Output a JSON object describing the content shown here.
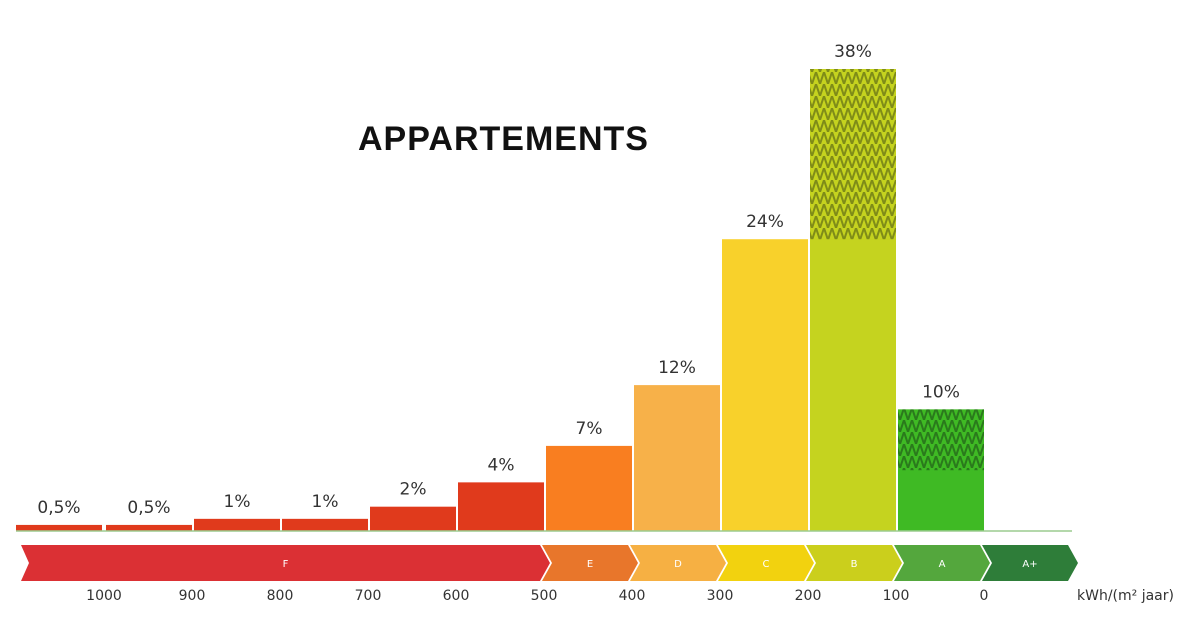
{
  "title": "APPARTEMENTS",
  "chart_data": {
    "type": "bar",
    "title": "APPARTEMENTS",
    "unit": "kWh/(m² jaar)",
    "categories": [
      "> 1000",
      "1000-900",
      "900-800",
      "800-700",
      "700-600",
      "600-500",
      "500-400",
      "400-300",
      "300-200",
      "200-100",
      "100-0"
    ],
    "values": [
      0.5,
      0.5,
      1,
      1,
      2,
      4,
      7,
      12,
      24,
      38,
      10
    ],
    "value_labels": [
      "0,5%",
      "0,5%",
      "1%",
      "1%",
      "2%",
      "4%",
      "7%",
      "12%",
      "24%",
      "38%",
      "10%"
    ],
    "bar_colors": [
      "#e03a1c",
      "#e03a1c",
      "#e03a1c",
      "#e03a1c",
      "#e03a1c",
      "#e03a1c",
      "#f97e20",
      "#f7b149",
      "#f8d12b",
      "#c5d31f",
      "#3fba24"
    ],
    "hatched_top_values": [
      0,
      0,
      0,
      0,
      0,
      0,
      0,
      0,
      0,
      14,
      5
    ],
    "hatch_colors": [
      "",
      "",
      "",
      "",
      "",
      "",
      "",
      "",
      "",
      "#7f8c18",
      "#2a7a1c"
    ],
    "x_ticks": [
      "1000",
      "900",
      "800",
      "700",
      "600",
      "500",
      "400",
      "300",
      "200",
      "100",
      "0"
    ],
    "ylim": [
      0,
      40
    ],
    "grid": false,
    "energy_bands": [
      {
        "label": "F",
        "color": "#db3034",
        "bins": 6
      },
      {
        "label": "E",
        "color": "#e8762b",
        "bins": 1
      },
      {
        "label": "D",
        "color": "#f6b043",
        "bins": 1
      },
      {
        "label": "C",
        "color": "#f2d20f",
        "bins": 1
      },
      {
        "label": "B",
        "color": "#cbcf1c",
        "bins": 1
      },
      {
        "label": "A",
        "color": "#54a73d",
        "bins": 1
      },
      {
        "label": "A+",
        "color": "#2e7d39",
        "bins": 1
      }
    ]
  }
}
